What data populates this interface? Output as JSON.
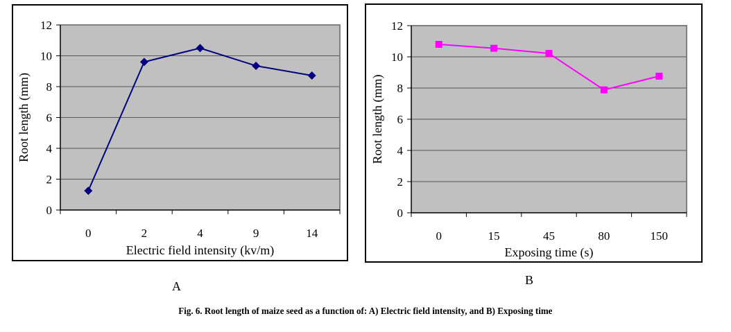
{
  "figure": {
    "caption": "Fig. 6. Root length of maize seed as a function of: A) Electric field intensity, and B) Exposing time",
    "panel_labels": [
      "A",
      "B"
    ]
  },
  "colors": {
    "plot_background": "#C0C0C0",
    "gridline": "#555555",
    "plot_border": "#808080",
    "series_a": "#000080",
    "series_b": "#FF00FF"
  },
  "chart_data": [
    {
      "type": "line",
      "panel": "A",
      "title": "",
      "xlabel": "Electric field intensity (kv/m)",
      "ylabel": "Root length (mm)",
      "categories": [
        "0",
        "2",
        "4",
        "9",
        "14"
      ],
      "series": [
        {
          "name": "Root length",
          "marker": "diamond",
          "color": "#000080",
          "values": [
            1.25,
            9.6,
            10.5,
            9.35,
            8.72
          ]
        }
      ],
      "ylim": [
        0,
        12
      ],
      "yticks": [
        0,
        2,
        4,
        6,
        8,
        10,
        12
      ],
      "grid": true,
      "legend": "none"
    },
    {
      "type": "line",
      "panel": "B",
      "title": "",
      "xlabel": "Exposing time (s)",
      "ylabel": "Root length (mm)",
      "categories": [
        "0",
        "15",
        "45",
        "80",
        "150"
      ],
      "series": [
        {
          "name": "Root length",
          "marker": "square",
          "color": "#FF00FF",
          "values": [
            10.8,
            10.55,
            10.22,
            7.88,
            8.76
          ]
        }
      ],
      "ylim": [
        0,
        12
      ],
      "yticks": [
        0,
        2,
        4,
        6,
        8,
        10,
        12
      ],
      "grid": true,
      "legend": "none"
    }
  ]
}
